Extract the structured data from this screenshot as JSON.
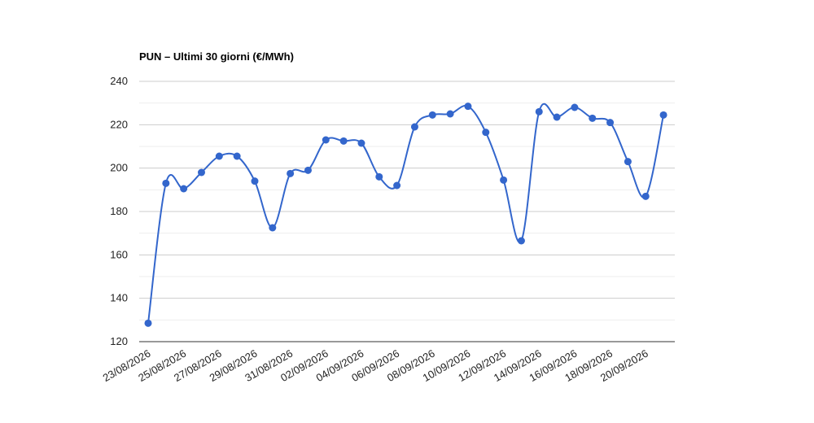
{
  "chart_data": {
    "type": "line",
    "title": "PUN – Ultimi 30 giorni (€/MWh)",
    "xlabel": "",
    "ylabel": "",
    "ylim": [
      120,
      240
    ],
    "yticks": [
      120,
      140,
      160,
      180,
      200,
      220,
      240
    ],
    "x_tick_labels": [
      "23/08/2026",
      "25/08/2026",
      "27/08/2026",
      "29/08/2026",
      "31/08/2026",
      "02/09/2026",
      "04/09/2026",
      "06/09/2026",
      "08/09/2026",
      "10/09/2026",
      "12/09/2026",
      "14/09/2026",
      "16/09/2026",
      "18/09/2026",
      "20/09/2026"
    ],
    "grid": true,
    "legend": "none",
    "color": "#3366cc",
    "x": [
      "23/08/2026",
      "24/08/2026",
      "25/08/2026",
      "26/08/2026",
      "27/08/2026",
      "28/08/2026",
      "29/08/2026",
      "30/08/2026",
      "31/08/2026",
      "01/09/2026",
      "02/09/2026",
      "03/09/2026",
      "04/09/2026",
      "05/09/2026",
      "06/09/2026",
      "07/09/2026",
      "08/09/2026",
      "09/09/2026",
      "10/09/2026",
      "11/09/2026",
      "12/09/2026",
      "13/09/2026",
      "14/09/2026",
      "15/09/2026",
      "16/09/2026",
      "17/09/2026",
      "18/09/2026",
      "19/09/2026",
      "20/09/2026",
      "21/09/2026"
    ],
    "values": [
      128.5,
      193,
      190.5,
      198,
      205.5,
      205.5,
      194,
      172.5,
      197.5,
      199,
      213,
      212.5,
      211.5,
      196,
      192,
      219,
      224.5,
      225,
      228.5,
      216.5,
      194.5,
      166.5,
      226,
      223.5,
      228,
      223,
      221,
      203,
      187,
      224.5
    ]
  }
}
